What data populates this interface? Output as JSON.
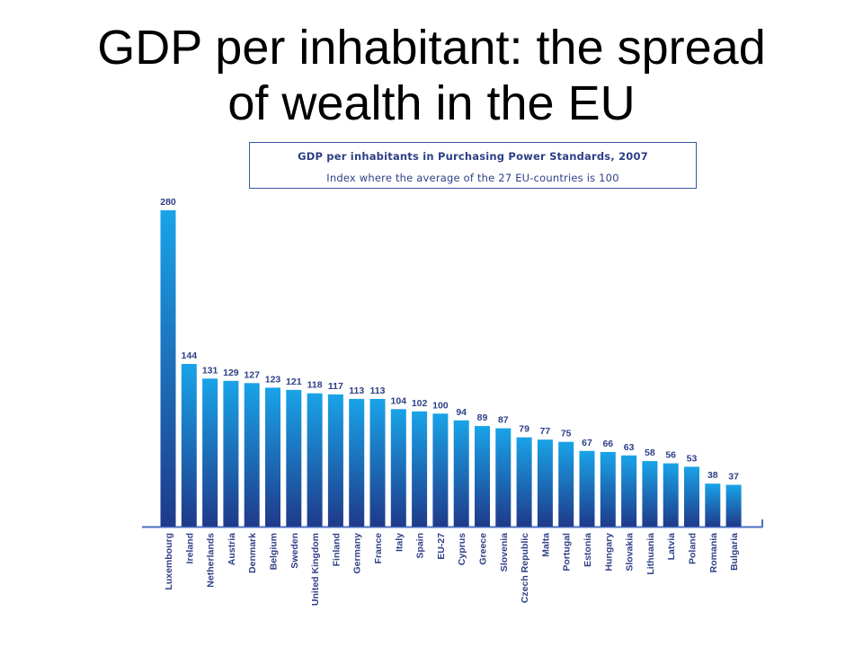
{
  "title_line1": "GDP per inhabitant: the spread",
  "title_line2": "of wealth in the EU",
  "caption": {
    "title": "GDP per inhabitants in Purchasing Power Standards, 2007",
    "subtitle": "Index where the average of the 27 EU-countries is 100"
  },
  "colors": {
    "bar_top": "#19a3e8",
    "bar_bottom": "#1f3a8a",
    "text": "#2d3f86",
    "axis": "#4a72c4"
  },
  "chart_data": {
    "type": "bar",
    "title": "GDP per inhabitants in Purchasing Power Standards, 2007",
    "subtitle": "Index where the average of the 27 EU-countries is 100",
    "xlabel": "",
    "ylabel": "",
    "ylim": [
      0,
      280
    ],
    "grid": false,
    "categories": [
      "Luxembourg",
      "Ireland",
      "Netherlands",
      "Austria",
      "Denmark",
      "Belgium",
      "Sweden",
      "United Kingdom",
      "Finland",
      "Germany",
      "France",
      "Italy",
      "Spain",
      "EU-27",
      "Cyprus",
      "Greece",
      "Slovenia",
      "Czech Republic",
      "Malta",
      "Portugal",
      "Estonia",
      "Hungary",
      "Slovakia",
      "Lithuania",
      "Latvia",
      "Poland",
      "Romania",
      "Bulgaria"
    ],
    "values": [
      280,
      144,
      131,
      129,
      127,
      123,
      121,
      118,
      117,
      113,
      113,
      104,
      102,
      100,
      94,
      89,
      87,
      79,
      77,
      75,
      67,
      66,
      63,
      58,
      56,
      53,
      38,
      37
    ]
  }
}
